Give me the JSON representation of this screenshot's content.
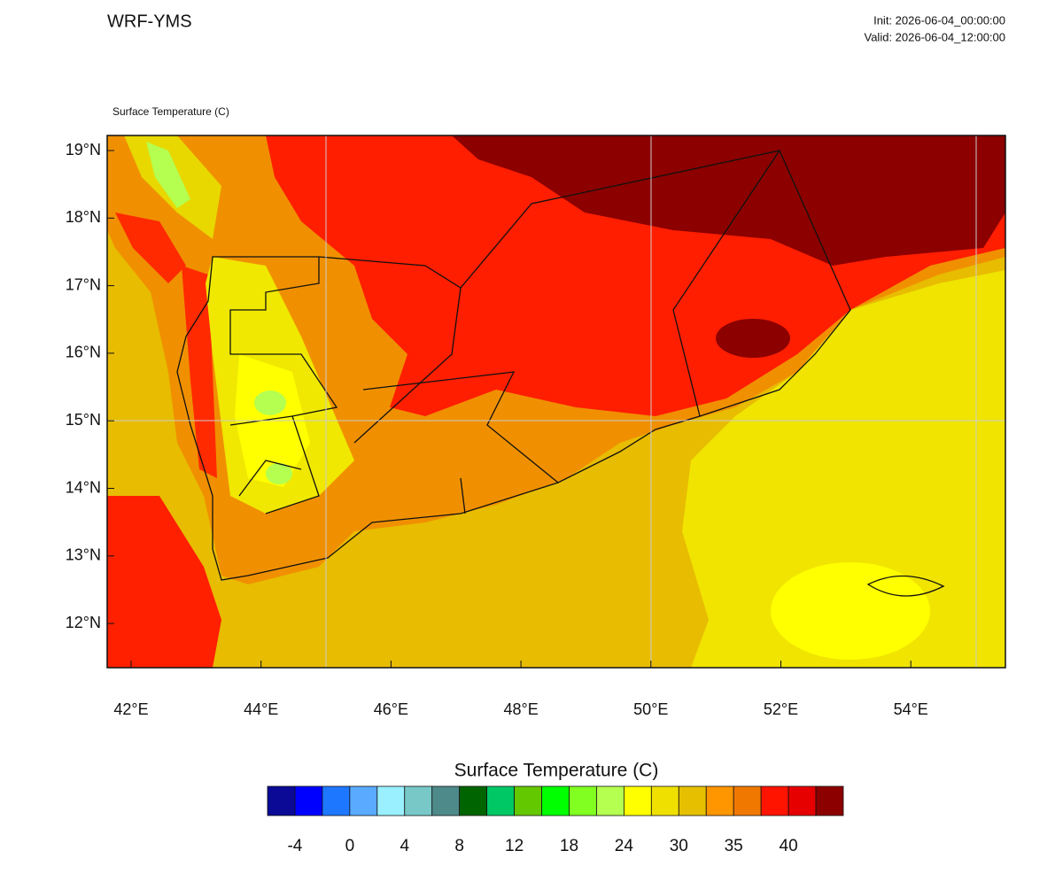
{
  "header": {
    "title": "WRF-YMS",
    "init": "Init: 2026-06-04_00:00:00",
    "valid": "Valid: 2026-06-04_12:00:00"
  },
  "map": {
    "label": "Surface Temperature  (C)",
    "lat_labels": [
      "19°N",
      "18°N",
      "17°N",
      "16°N",
      "15°N",
      "14°N",
      "13°N",
      "12°N"
    ],
    "lon_labels": [
      "42°E",
      "44°E",
      "46°E",
      "48°E",
      "50°E",
      "52°E",
      "54°E"
    ]
  },
  "colorbar": {
    "title": "Surface Temperature  (C)",
    "colors": [
      "#0a0a96",
      "#0000ff",
      "#1e78ff",
      "#5aaaff",
      "#9af0ff",
      "#78c8c8",
      "#4f8a8a",
      "#006400",
      "#00c864",
      "#64c800",
      "#00ff00",
      "#80ff20",
      "#b4ff50",
      "#ffff00",
      "#f0e000",
      "#e6c000",
      "#ff9600",
      "#f07800",
      "#ff1400",
      "#e60000",
      "#8c0000"
    ],
    "labels": [
      -4,
      0,
      4,
      8,
      12,
      18,
      24,
      30,
      35,
      40
    ]
  }
}
